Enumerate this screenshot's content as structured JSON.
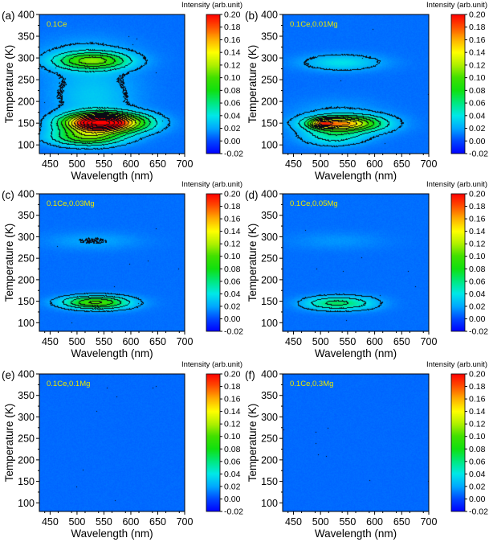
{
  "chart_data": {
    "type": "heatmap",
    "shared": {
      "xlabel": "Wavelength (nm)",
      "ylabel": "Temperature (K)",
      "colorbar_label": "Intensity (arb.unit)",
      "xlim": [
        430,
        700
      ],
      "ylim": [
        80,
        400
      ],
      "xticks": [
        450,
        500,
        550,
        600,
        650,
        700
      ],
      "yticks": [
        100,
        150,
        200,
        250,
        300,
        350,
        400
      ],
      "clim": [
        -0.02,
        0.2
      ],
      "cticks": [
        "-0.02",
        "0.00",
        "0.02",
        "0.04",
        "0.06",
        "0.08",
        "0.10",
        "0.12",
        "0.14",
        "0.16",
        "0.18",
        "0.20"
      ],
      "colormap_stops": [
        [
          -0.02,
          "#0000ff"
        ],
        [
          0.0,
          "#0048ff"
        ],
        [
          0.02,
          "#00a8ff"
        ],
        [
          0.04,
          "#00e8e8"
        ],
        [
          0.06,
          "#00e880"
        ],
        [
          0.08,
          "#10e010"
        ],
        [
          0.1,
          "#40e000"
        ],
        [
          0.12,
          "#b0f000"
        ],
        [
          0.14,
          "#ffff00"
        ],
        [
          0.16,
          "#ffb000"
        ],
        [
          0.18,
          "#ff5000"
        ],
        [
          0.2,
          "#ff0000"
        ]
      ],
      "contour_step": 0.02,
      "sample_label_color": "#e8e800"
    },
    "panels": [
      {
        "letter": "(a)",
        "sample": "0.1Ce",
        "background": 0.008,
        "contours": true,
        "components": [
          {
            "wavelength_nm": 540,
            "temperature_K": 151,
            "amplitude": 0.24,
            "width_nm": 42,
            "width_K": 14
          },
          {
            "wavelength_nm": 600,
            "temperature_K": 150,
            "amplitude": 0.05,
            "width_nm": 40,
            "width_K": 16
          },
          {
            "wavelength_nm": 520,
            "temperature_K": 118,
            "amplitude": 0.09,
            "width_nm": 45,
            "width_K": 14
          },
          {
            "wavelength_nm": 530,
            "temperature_K": 210,
            "amplitude": 0.022,
            "width_nm": 55,
            "width_K": 40
          },
          {
            "wavelength_nm": 530,
            "temperature_K": 293,
            "amplitude": 0.085,
            "width_nm": 45,
            "width_K": 13
          },
          {
            "wavelength_nm": 520,
            "temperature_K": 300,
            "amplitude": 0.02,
            "width_nm": 60,
            "width_K": 30
          }
        ]
      },
      {
        "letter": "(b)",
        "sample": "0.1Ce,0.01Mg",
        "background": 0.008,
        "contours": true,
        "components": [
          {
            "wavelength_nm": 535,
            "temperature_K": 149,
            "amplitude": 0.13,
            "width_nm": 40,
            "width_K": 11
          },
          {
            "wavelength_nm": 502,
            "temperature_K": 149,
            "amplitude": 0.07,
            "width_nm": 14,
            "width_K": 7
          },
          {
            "wavelength_nm": 590,
            "temperature_K": 148,
            "amplitude": 0.03,
            "width_nm": 40,
            "width_K": 15
          },
          {
            "wavelength_nm": 525,
            "temperature_K": 120,
            "amplitude": 0.04,
            "width_nm": 40,
            "width_K": 15
          },
          {
            "wavelength_nm": 530,
            "temperature_K": 165,
            "amplitude": 0.015,
            "width_nm": 55,
            "width_K": 25
          },
          {
            "wavelength_nm": 540,
            "temperature_K": 289,
            "amplitude": 0.03,
            "width_nm": 50,
            "width_K": 13
          }
        ]
      },
      {
        "letter": "(c)",
        "sample": "0.1Ce,0.03Mg",
        "background": 0.008,
        "contours": true,
        "components": [
          {
            "wavelength_nm": 530,
            "temperature_K": 147,
            "amplitude": 0.08,
            "width_nm": 40,
            "width_K": 10
          },
          {
            "wavelength_nm": 560,
            "temperature_K": 145,
            "amplitude": 0.02,
            "width_nm": 40,
            "width_K": 12
          },
          {
            "wavelength_nm": 530,
            "temperature_K": 290,
            "amplitude": 0.012,
            "width_nm": 60,
            "width_K": 14
          }
        ]
      },
      {
        "letter": "(d)",
        "sample": "0.1Ce,0.05Mg",
        "background": 0.008,
        "contours": true,
        "components": [
          {
            "wavelength_nm": 525,
            "temperature_K": 145,
            "amplitude": 0.055,
            "width_nm": 38,
            "width_K": 11
          },
          {
            "wavelength_nm": 580,
            "temperature_K": 145,
            "amplitude": 0.015,
            "width_nm": 30,
            "width_K": 12
          },
          {
            "wavelength_nm": 530,
            "temperature_K": 290,
            "amplitude": 0.008,
            "width_nm": 60,
            "width_K": 14
          }
        ]
      },
      {
        "letter": "(e)",
        "sample": "0.1Ce,0.1Mg",
        "background": 0.007,
        "contours": false,
        "components": []
      },
      {
        "letter": "(f)",
        "sample": "0.1Ce,0.3Mg",
        "background": 0.007,
        "contours": false,
        "components": []
      }
    ]
  }
}
